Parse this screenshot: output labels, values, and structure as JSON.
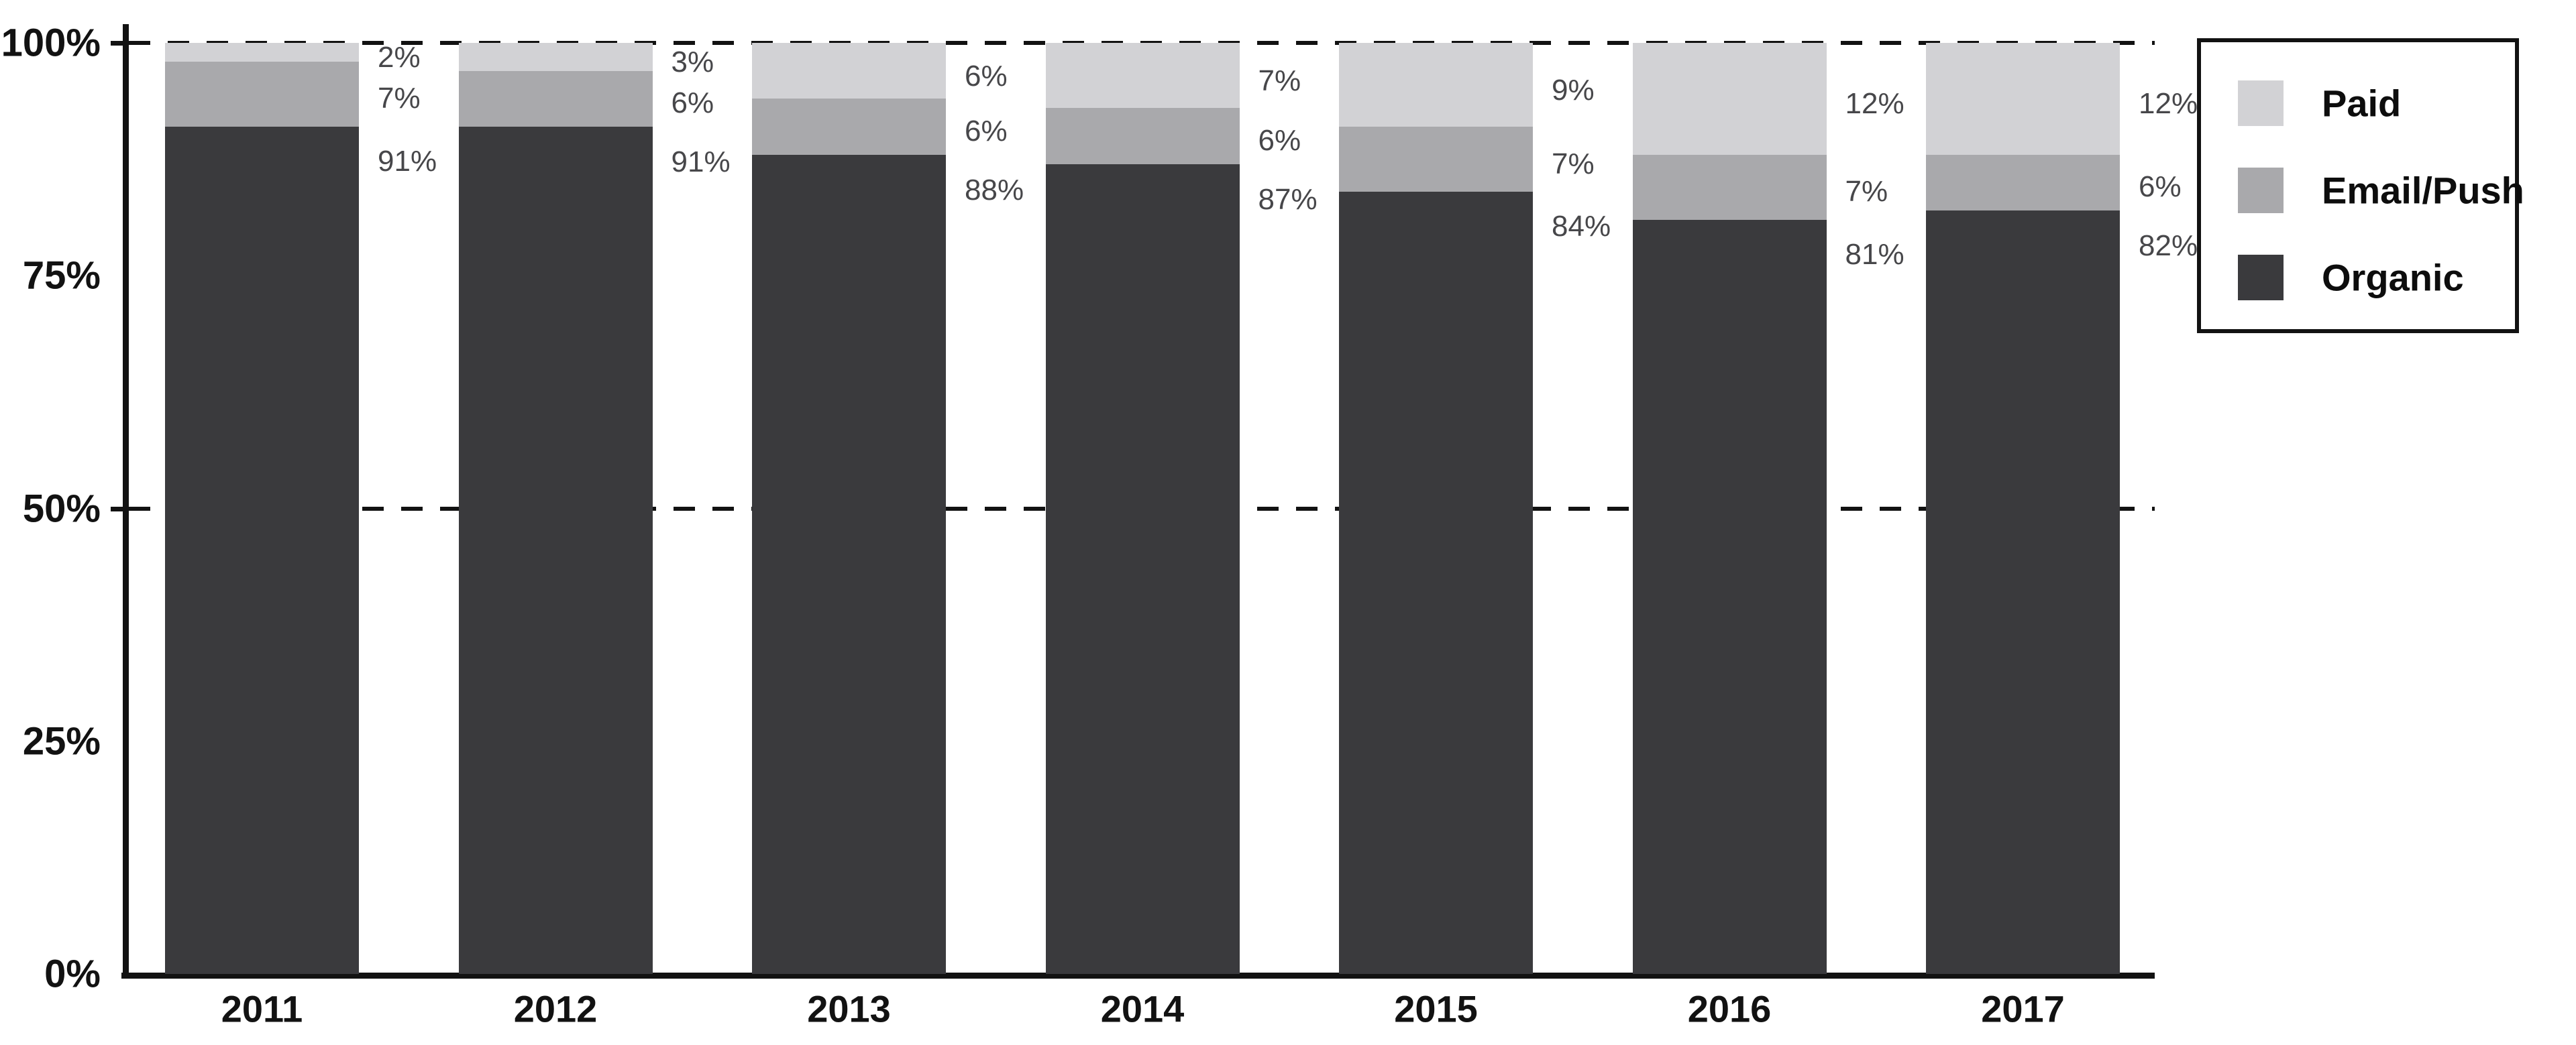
{
  "chart_data": {
    "type": "bar",
    "stacked": true,
    "categories": [
      "2011",
      "2012",
      "2013",
      "2014",
      "2015",
      "2016",
      "2017"
    ],
    "series": [
      {
        "name": "Paid",
        "color": "#d2d2d5",
        "values": [
          2,
          3,
          6,
          7,
          9,
          12,
          12
        ]
      },
      {
        "name": "Email/Push",
        "color": "#a9a9ac",
        "values": [
          7,
          6,
          6,
          6,
          7,
          7,
          6
        ]
      },
      {
        "name": "Organic",
        "color": "#3a3a3d",
        "values": [
          91,
          91,
          88,
          87,
          84,
          81,
          82
        ]
      }
    ],
    "value_labels": [
      [
        "2%",
        "7%",
        "91%"
      ],
      [
        "3%",
        "6%",
        "91%"
      ],
      [
        "6%",
        "6%",
        "88%"
      ],
      [
        "7%",
        "6%",
        "87%"
      ],
      [
        "9%",
        "7%",
        "84%"
      ],
      [
        "12%",
        "7%",
        "81%"
      ],
      [
        "12%",
        "6%",
        "82%"
      ]
    ],
    "y_axis": {
      "ticks": [
        "100%",
        "75%",
        "50%",
        "25%",
        "0%"
      ],
      "values": [
        100,
        75,
        50,
        25,
        0
      ],
      "range": [
        0,
        100
      ]
    },
    "gridlines": {
      "style": "dashed",
      "at_values": [
        100,
        50
      ]
    },
    "legend": {
      "position": "top-right",
      "items": [
        "Paid",
        "Email/Push",
        "Organic"
      ]
    },
    "colors": {
      "axis": "#121212",
      "value_label_text": "#47474a",
      "background": "#ffffff"
    }
  }
}
